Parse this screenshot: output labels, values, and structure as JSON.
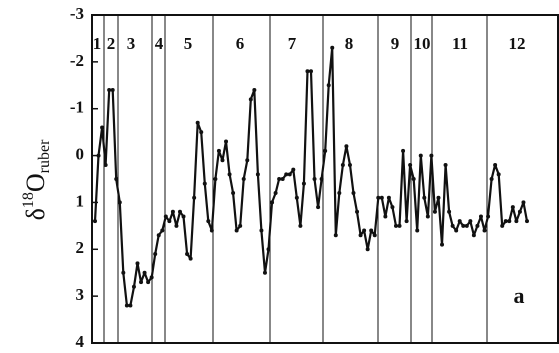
{
  "chart_data": {
    "type": "line",
    "y_label": {
      "symbol": "δ",
      "sup": "18",
      "main": "O",
      "sub": "ruber"
    },
    "panel_label": "a",
    "zones": [
      "1",
      "2",
      "3",
      "4",
      "5",
      "6",
      "7",
      "8",
      "9",
      "10",
      "11",
      "12"
    ],
    "ylim": [
      -3,
      4
    ],
    "y_inverted": true,
    "yticks": [
      -3,
      -2,
      -1,
      0,
      1,
      2,
      3,
      4
    ],
    "series": [
      {
        "color": "#111111",
        "values": [
          1.4,
          0,
          -0.6,
          0.2,
          -1.4,
          -1.4,
          0.5,
          1,
          2.5,
          3.2,
          3.2,
          2.8,
          2.3,
          2.7,
          2.5,
          2.7,
          2.6,
          2.1,
          1.7,
          1.6,
          1.3,
          1.4,
          1.2,
          1.5,
          1.2,
          1.3,
          2.1,
          2.2,
          0.9,
          -0.7,
          -0.5,
          0.6,
          1.4,
          1.6,
          0.5,
          -0.1,
          0.1,
          -0.3,
          0.4,
          0.8,
          1.6,
          1.5,
          0.5,
          0.1,
          -1.2,
          -1.4,
          0.4,
          1.6,
          2.5,
          2,
          1,
          0.8,
          0.5,
          0.5,
          0.4,
          0.4,
          0.3,
          0.9,
          1.5,
          0.6,
          -1.8,
          -1.8,
          0.5,
          1.1,
          0.5,
          -0.1,
          -1.5,
          -2.3,
          1.7,
          0.8,
          0.2,
          -0.2,
          0.2,
          0.8,
          1.2,
          1.7,
          1.6,
          2,
          1.6,
          1.7,
          0.9,
          0.9,
          1.3,
          0.9,
          1.1,
          1.5,
          1.5,
          -0.1,
          1.4,
          0.2,
          0.5,
          1.6,
          0,
          0.9,
          1.3,
          0,
          1.2,
          0.9,
          1.9,
          0.2,
          1.2,
          1.5,
          1.6,
          1.4,
          1.5,
          1.5,
          1.4,
          1.7,
          1.5,
          1.3,
          1.6,
          1.3,
          0.5,
          0.2,
          0.4,
          1.5,
          1.4,
          1.4,
          1.1,
          1.4,
          1.2,
          1,
          1.4
        ]
      }
    ]
  }
}
